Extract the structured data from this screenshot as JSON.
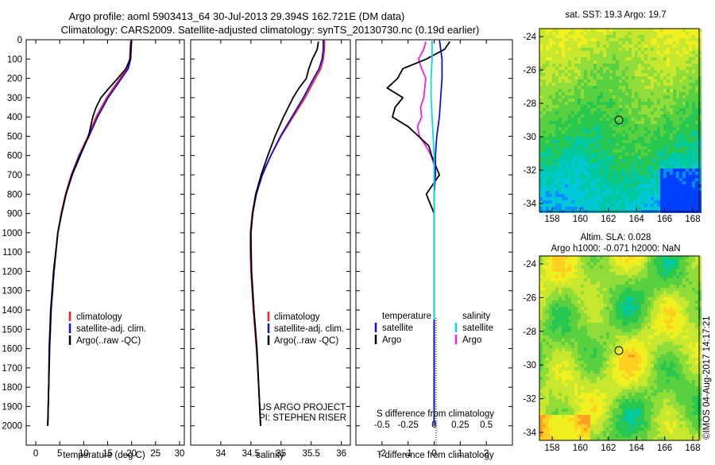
{
  "title": {
    "line1": "Argo profile: aoml 5903413_64 30-Jul-2013 29.394S 162.721E (DM data)",
    "line2": "Climatology: CARS2009. Satellite-adjusted climatology: synTS_20130730.nc (0.19d earlier)"
  },
  "colors": {
    "climatology": "#ff2020",
    "satellite": "#1010dd",
    "argo": "#000000",
    "sal_satellite": "#00e0e0",
    "sal_argo": "#ee20ee"
  },
  "depth_axis": {
    "ticks": [
      0,
      100,
      200,
      300,
      400,
      500,
      600,
      700,
      800,
      900,
      1000,
      1100,
      1200,
      1300,
      1400,
      1500,
      1600,
      1700,
      1800,
      1900,
      2000
    ],
    "range": [
      0,
      2100
    ]
  },
  "temperature_panel": {
    "xlabel": "temperature (deg C)",
    "xlim": [
      -2,
      31
    ],
    "xticks": [
      0,
      5,
      10,
      15,
      20,
      25,
      30
    ],
    "legend": [
      "climatology",
      "satellite-adj. clim.",
      "Argo(..raw -QC)"
    ]
  },
  "salinity_panel": {
    "xlabel": "salinity",
    "xlim": [
      33.5,
      36.15
    ],
    "xticks": [
      34,
      34.5,
      35,
      35.5,
      36
    ],
    "legend": [
      "climatology",
      "satellite-adj. clim.",
      "Argo(..raw -QC)"
    ],
    "credit1": "US ARGO PROJECT",
    "credit2": "PI: STEPHEN RISER"
  },
  "difference_panel": {
    "t_label": "T difference from climatology",
    "s_label": "S difference from climatology",
    "t_xlim": [
      -3,
      3
    ],
    "t_ticks": [
      "-2",
      "-1",
      "0",
      "1",
      "2"
    ],
    "t_tick_values": [
      -2,
      -1,
      0,
      1,
      2
    ],
    "s_ticks": [
      "-0.5",
      "-0.25",
      "0",
      "0.25",
      "0.5"
    ],
    "s_tick_values": [
      -0.5,
      -0.25,
      0,
      0.25,
      0.5
    ],
    "legend_left_title": "temperature",
    "legend_right_title": "salinity",
    "legend_left": [
      "satellite",
      "Argo"
    ],
    "legend_right": [
      "satellite",
      "Argo"
    ]
  },
  "map_sst": {
    "title": "sat. SST: 19.3  Argo: 19.7",
    "yticks": [
      "-24",
      "-26",
      "-28",
      "-30",
      "-32",
      "-34"
    ],
    "xticks": [
      "158",
      "160",
      "162",
      "164",
      "166",
      "168"
    ]
  },
  "map_sla": {
    "title1": "Altim. SLA: 0.028",
    "title2": "Argo h1000: -0.071 h2000: NaN",
    "yticks": [
      "-24",
      "-26",
      "-28",
      "-30",
      "-32",
      "-34"
    ],
    "xticks": [
      "158",
      "160",
      "162",
      "164",
      "166",
      "168"
    ]
  },
  "footer": "©IMOS 04-Aug-2017 14:17:21",
  "chart_data": [
    {
      "type": "line",
      "name": "temperature profile",
      "ylabel": "depth (dbar)",
      "xlabel": "temperature (deg C)",
      "series": [
        {
          "name": "climatology",
          "depth": [
            0,
            50,
            100,
            150,
            200,
            250,
            300,
            400,
            500,
            600,
            700,
            800,
            900,
            1000,
            1200,
            1400,
            1600,
            1800,
            2000
          ],
          "values": [
            19.8,
            19.7,
            19.6,
            19.0,
            17.6,
            16.2,
            14.8,
            12.6,
            10.9,
            9.0,
            7.4,
            6.2,
            5.3,
            4.6,
            3.8,
            3.2,
            2.9,
            2.7,
            2.5
          ]
        },
        {
          "name": "satellite-adj. clim.",
          "depth": [
            0,
            50,
            100,
            150,
            200,
            250,
            300,
            400,
            500,
            600,
            700,
            800,
            900,
            1000,
            1200,
            1400,
            1600,
            1800,
            2000
          ],
          "values": [
            20.0,
            19.9,
            19.8,
            19.3,
            17.9,
            16.5,
            15.1,
            12.9,
            11.1,
            9.1,
            7.5,
            6.3,
            5.4,
            4.6,
            3.8,
            3.2,
            2.9,
            2.7,
            2.5
          ]
        },
        {
          "name": "Argo",
          "depth": [
            10,
            50,
            100,
            150,
            200,
            250,
            300,
            350,
            400,
            500,
            600,
            700,
            800,
            900,
            1000,
            1200,
            1400,
            1600,
            1800,
            2000
          ],
          "values": [
            19.9,
            19.8,
            19.7,
            18.8,
            17.1,
            15.3,
            13.6,
            12.6,
            11.9,
            11.0,
            9.3,
            7.6,
            6.3,
            5.4,
            4.6,
            3.7,
            3.1,
            2.8,
            2.7,
            2.5
          ]
        }
      ]
    },
    {
      "type": "line",
      "name": "salinity profile",
      "ylabel": "depth (dbar)",
      "xlabel": "salinity",
      "series": [
        {
          "name": "climatology",
          "depth": [
            0,
            50,
            100,
            150,
            200,
            300,
            400,
            500,
            600,
            700,
            800,
            900,
            1000,
            1100,
            1200,
            1400,
            1600,
            1800,
            2000
          ],
          "values": [
            35.72,
            35.72,
            35.7,
            35.66,
            35.57,
            35.4,
            35.2,
            35.0,
            34.83,
            34.68,
            34.58,
            34.52,
            34.49,
            34.49,
            34.5,
            34.54,
            34.59,
            34.63,
            34.66
          ]
        },
        {
          "name": "satellite-adj. clim.",
          "depth": [
            0,
            50,
            100,
            150,
            200,
            300,
            400,
            500,
            600,
            700,
            800,
            900,
            1000,
            1100,
            1200,
            1400,
            1600,
            1800,
            2000
          ],
          "values": [
            35.7,
            35.7,
            35.68,
            35.63,
            35.54,
            35.37,
            35.18,
            34.99,
            34.83,
            34.69,
            34.59,
            34.53,
            34.5,
            34.5,
            34.51,
            34.55,
            34.6,
            34.63,
            34.66
          ]
        },
        {
          "name": "Argo",
          "depth": [
            10,
            50,
            100,
            150,
            200,
            250,
            300,
            350,
            400,
            500,
            600,
            700,
            800,
            900,
            1000,
            1200,
            1400,
            1600,
            1800,
            2000
          ],
          "values": [
            35.62,
            35.6,
            35.52,
            35.46,
            35.42,
            35.3,
            35.2,
            35.12,
            35.04,
            34.9,
            34.78,
            34.67,
            34.58,
            34.53,
            34.5,
            34.51,
            34.55,
            34.6,
            34.63,
            34.66
          ]
        }
      ]
    },
    {
      "type": "line",
      "name": "differences from climatology",
      "series": [
        {
          "name": "temperature satellite",
          "depth": [
            0,
            100,
            200,
            300,
            400,
            500,
            600,
            700,
            800,
            900,
            1000,
            1200,
            1400,
            1600,
            1800,
            2000
          ],
          "values": [
            0.2,
            0.3,
            0.3,
            0.25,
            0.2,
            0.1,
            0.05,
            0.05,
            0.0,
            0.0,
            0.0,
            0.0,
            0.0,
            0.0,
            0.0,
            0.0
          ]
        },
        {
          "name": "temperature Argo",
          "depth": [
            10,
            50,
            100,
            150,
            200,
            250,
            300,
            350,
            400,
            450,
            500,
            550,
            600,
            700,
            800,
            900,
            1000,
            1200,
            1400,
            1600,
            1800,
            2000
          ],
          "values": [
            0.6,
            0.4,
            -0.3,
            -1.2,
            -1.4,
            -1.8,
            -1.2,
            -1.5,
            -1.6,
            -1.0,
            -0.6,
            -0.2,
            -0.1,
            0.2,
            -0.3,
            0.0,
            0.0,
            0.0,
            0.0,
            0.0,
            0.0,
            0.0
          ]
        },
        {
          "name": "salinity satellite",
          "depth": [
            0,
            100,
            200,
            300,
            400,
            500,
            600,
            700,
            800,
            900,
            1000,
            1200,
            1400,
            1450
          ],
          "values": [
            -0.02,
            -0.02,
            -0.03,
            -0.03,
            -0.02,
            -0.01,
            0.0,
            0.0,
            0.0,
            0.0,
            0.0,
            0.0,
            0.0,
            0.0
          ]
        },
        {
          "name": "salinity Argo",
          "depth": [
            10,
            50,
            100,
            150,
            200,
            250,
            300,
            350,
            400,
            450,
            500,
            550,
            600,
            650,
            700,
            800,
            900,
            1000,
            1200,
            1400,
            1600,
            1800,
            2000
          ],
          "values": [
            -0.08,
            -0.1,
            -0.15,
            -0.12,
            -0.08,
            -0.09,
            -0.1,
            -0.13,
            -0.12,
            -0.16,
            -0.14,
            -0.08,
            -0.03,
            0.0,
            0.0,
            0.0,
            0.0,
            0.0,
            0.0,
            0.0,
            0.0,
            0.0,
            0.0
          ]
        }
      ]
    }
  ]
}
